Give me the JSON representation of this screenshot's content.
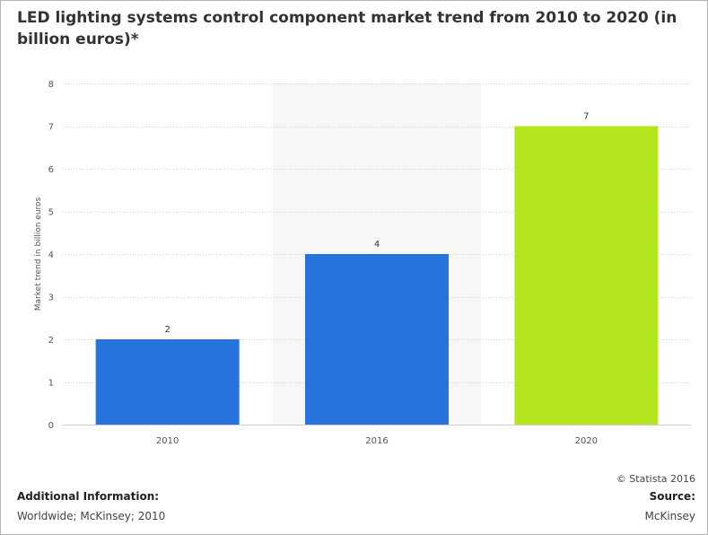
{
  "chart_data": {
    "type": "bar",
    "title": "LED lighting systems control component market trend from 2010 to 2020 (in billion euros)*",
    "ylabel": "Market trend in billion euros",
    "xlabel": "",
    "categories": [
      "2010",
      "2016",
      "2020"
    ],
    "values": [
      2,
      4,
      7
    ],
    "data_labels": [
      "2",
      "4",
      "7"
    ],
    "ylim": [
      0,
      8
    ],
    "yticks": [
      "0",
      "1",
      "2",
      "3",
      "4",
      "5",
      "6",
      "7",
      "8"
    ],
    "grid": true,
    "highlighted_category": "2016",
    "colors": {
      "bar": "#2673dc",
      "bar_highlight": "#b4e61e",
      "highlight_band": "#f7f7f7",
      "grid": "#d0d0d0"
    },
    "bar_colors": [
      "#2673dc",
      "#2673dc",
      "#b4e61e"
    ]
  },
  "footer": {
    "credit": "© Statista 2016",
    "additional_info_heading": "Additional Information:",
    "additional_info_text": "Worldwide; McKinsey; 2010",
    "source_heading": "Source:",
    "source_text": "McKinsey"
  }
}
